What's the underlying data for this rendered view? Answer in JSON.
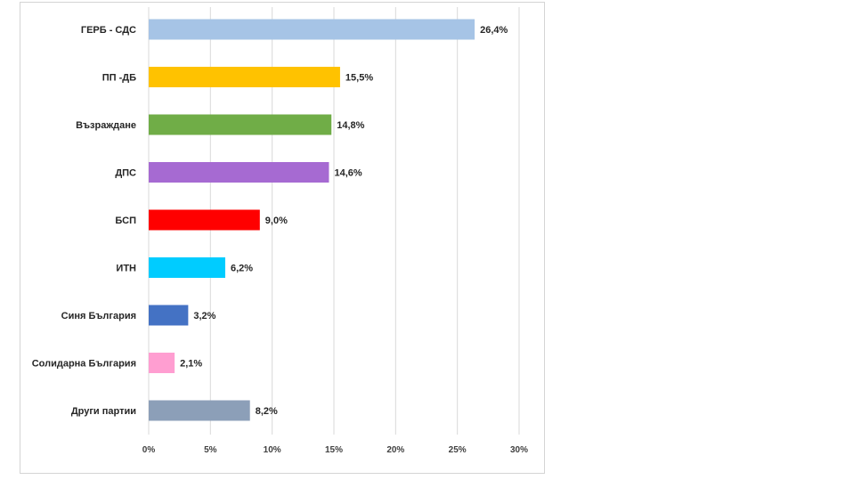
{
  "chart_data": {
    "type": "bar",
    "orientation": "horizontal",
    "categories": [
      "ГЕРБ - СДС",
      "ПП -ДБ",
      "Възраждане",
      "ДПС",
      "БСП",
      "ИТН",
      "Синя България",
      "Солидарна България",
      "Други партии"
    ],
    "values": [
      26.4,
      15.5,
      14.8,
      14.6,
      9.0,
      6.2,
      3.2,
      2.1,
      8.2
    ],
    "value_labels": [
      "26,4%",
      "15,5%",
      "14,8%",
      "14,6%",
      "9,0%",
      "6,2%",
      "3,2%",
      "2,1%",
      "8,2%"
    ],
    "colors": [
      "#a6c4e6",
      "#ffc200",
      "#70ad47",
      "#a66ad2",
      "#ff0000",
      "#00ccff",
      "#4472c4",
      "#ff9ed1",
      "#8c9fb8"
    ],
    "xlim": [
      0,
      30
    ],
    "x_ticks": [
      0,
      5,
      10,
      15,
      20,
      25,
      30
    ],
    "x_tick_labels": [
      "0%",
      "5%",
      "10%",
      "15%",
      "20%",
      "25%",
      "30%"
    ],
    "grid": "vertical",
    "legend": "none",
    "title": "",
    "xlabel": "",
    "ylabel": ""
  }
}
